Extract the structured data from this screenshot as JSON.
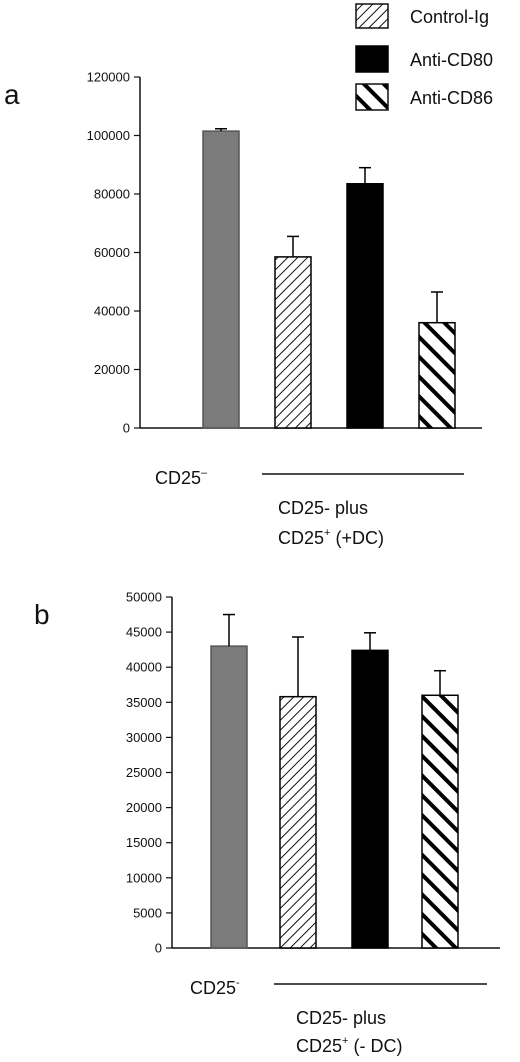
{
  "legend": {
    "entries": [
      {
        "name": "Control-Ig",
        "pattern": "thin-diag"
      },
      {
        "name": "Anti-CD80",
        "pattern": "solid-black"
      },
      {
        "name": "Anti-CD86",
        "pattern": "thick-diag"
      }
    ]
  },
  "colors": {
    "gray_bar": "#7b7b7b",
    "black_bar": "#000000",
    "axis": "#111111"
  },
  "chart_data": [
    {
      "type": "bar",
      "panel": "a",
      "categories": [
        "CD25-",
        "Control-Ig",
        "Anti-CD80",
        "Anti-CD86"
      ],
      "values": [
        101500,
        58500,
        83500,
        36000
      ],
      "errors": [
        800,
        7000,
        5500,
        10500
      ],
      "patterns": [
        "solid-gray",
        "thin-diag",
        "solid-black",
        "thick-diag"
      ],
      "ylim": [
        0,
        120000
      ],
      "yticks": [
        0,
        20000,
        40000,
        60000,
        80000,
        100000,
        120000
      ],
      "ytick_labels": [
        "0",
        "20000",
        "40000",
        "60000",
        "80000",
        "100000",
        "120000"
      ],
      "group_labels": {
        "single": "CD25",
        "single_sup": "–",
        "combined_line1": "CD25- plus",
        "combined_line2_pre": "CD25",
        "combined_line2_sup": "+",
        "combined_line2_post": " (+DC)"
      }
    },
    {
      "type": "bar",
      "panel": "b",
      "categories": [
        "CD25-",
        "Control-Ig",
        "Anti-CD80",
        "Anti-CD86"
      ],
      "values": [
        43000,
        35800,
        42400,
        36000
      ],
      "errors": [
        4500,
        8500,
        2500,
        3500
      ],
      "patterns": [
        "solid-gray",
        "thin-diag",
        "solid-black",
        "thick-diag"
      ],
      "ylim": [
        0,
        50000
      ],
      "yticks": [
        0,
        5000,
        10000,
        15000,
        20000,
        25000,
        30000,
        35000,
        40000,
        45000,
        50000
      ],
      "ytick_labels": [
        "0",
        "5000",
        "10000",
        "15000",
        "20000",
        "25000",
        "30000",
        "35000",
        "40000",
        "45000",
        "50000"
      ],
      "group_labels": {
        "single": "CD25",
        "single_sup": "-",
        "combined_line1": "CD25- plus",
        "combined_line2_pre": "CD25",
        "combined_line2_sup": "+",
        "combined_line2_post": " (- DC)"
      }
    }
  ]
}
